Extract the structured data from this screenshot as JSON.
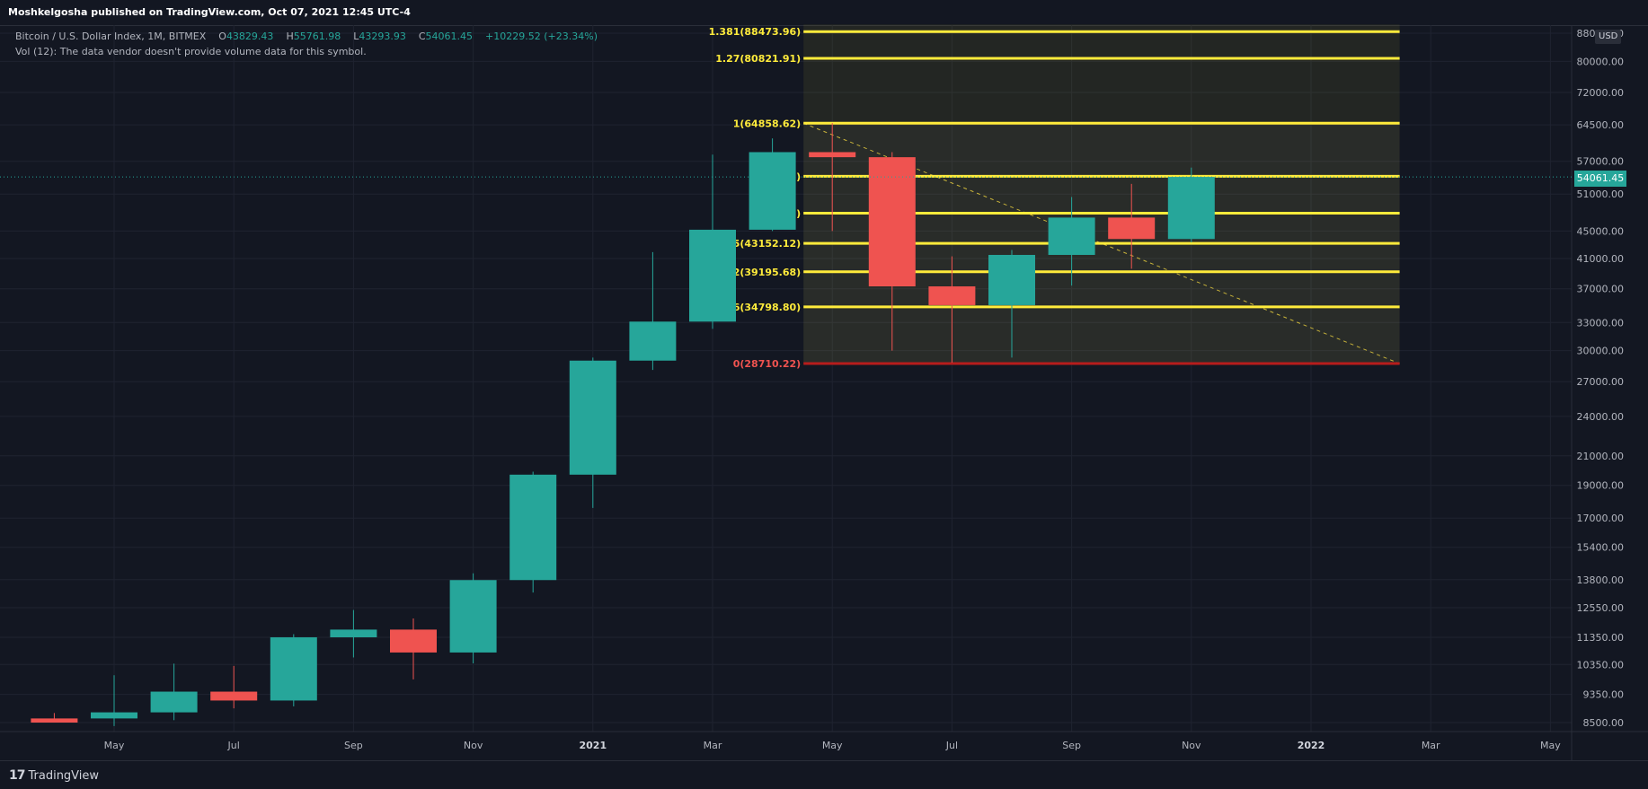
{
  "header": {
    "publish_line": "Moshkelgosha published on TradingView.com, Oct 07, 2021 12:45 UTC-4"
  },
  "legend": {
    "symbol": "Bitcoin / U.S. Dollar Index, 1M, BITMEX",
    "o_label": "O",
    "o_value": "43829.43",
    "h_label": "H",
    "h_value": "55761.98",
    "l_label": "L",
    "l_value": "43293.93",
    "c_label": "C",
    "c_value": "54061.45",
    "change": "+10229.52 (+23.34%)",
    "volume_note": "Vol (12): The data vendor doesn't provide volume data for this symbol."
  },
  "price_scale": {
    "currency": "USD",
    "last_price": "54061.45"
  },
  "footer": {
    "brand": "TradingView",
    "logo": "17"
  },
  "chart_data": {
    "type": "candlestick",
    "symbol": "Bitcoin / U.S. Dollar Index",
    "interval": "1M",
    "exchange": "BITMEX",
    "scale": "log",
    "y_ticks": [
      8500,
      9350,
      10350,
      11350,
      12550,
      13800,
      15400,
      17000,
      19000,
      21000,
      24000,
      27000,
      30000,
      33000,
      37000,
      41000,
      45000,
      51000,
      57000,
      64500,
      72000,
      80000,
      88000
    ],
    "y_tick_labels": [
      "8500.00",
      "9350.00",
      "10350.00",
      "11350.00",
      "12550.00",
      "13800.00",
      "15400.00",
      "17000.00",
      "19000.00",
      "21000.00",
      "24000.00",
      "27000.00",
      "30000.00",
      "33000.00",
      "37000.00",
      "41000.00",
      "45000.00",
      "51000.00",
      "57000.00",
      "64500.00",
      "72000.00",
      "80000.00",
      "88000.00"
    ],
    "x_labels": [
      "May",
      "Jul",
      "Sep",
      "Nov",
      "2021",
      "Mar",
      "May",
      "Jul",
      "Sep",
      "Nov",
      "2022",
      "Mar",
      "May"
    ],
    "x_label_month_index": [
      4,
      6,
      8,
      10,
      12,
      14,
      16,
      18,
      20,
      22,
      24,
      26,
      28
    ],
    "x_label_bold": [
      false,
      false,
      false,
      false,
      true,
      false,
      false,
      false,
      false,
      false,
      true,
      false,
      false
    ],
    "candles": [
      {
        "m": 3,
        "o": 8620,
        "h": 8780,
        "l": 8500,
        "c": 8500
      },
      {
        "m": 4,
        "o": 8620,
        "h": 9980,
        "l": 8400,
        "c": 8800
      },
      {
        "m": 5,
        "o": 8800,
        "h": 10380,
        "l": 8570,
        "c": 9440
      },
      {
        "m": 6,
        "o": 9440,
        "h": 10300,
        "l": 8920,
        "c": 9160
      },
      {
        "m": 7,
        "o": 9160,
        "h": 11470,
        "l": 8980,
        "c": 11350
      },
      {
        "m": 8,
        "o": 11350,
        "h": 12450,
        "l": 10600,
        "c": 11650
      },
      {
        "m": 9,
        "o": 11650,
        "h": 12100,
        "l": 9840,
        "c": 10780
      },
      {
        "m": 10,
        "o": 10780,
        "h": 14100,
        "l": 10390,
        "c": 13780
      },
      {
        "m": 11,
        "o": 13780,
        "h": 19900,
        "l": 13210,
        "c": 19700
      },
      {
        "m": 12,
        "o": 19700,
        "h": 29300,
        "l": 17600,
        "c": 29000
      },
      {
        "m": 13,
        "o": 29000,
        "h": 41900,
        "l": 28100,
        "c": 33100
      },
      {
        "m": 14,
        "o": 33100,
        "h": 58300,
        "l": 32300,
        "c": 45200
      },
      {
        "m": 15,
        "o": 45200,
        "h": 61600,
        "l": 45000,
        "c": 58800
      },
      {
        "m": 16,
        "o": 58800,
        "h": 64900,
        "l": 45000,
        "c": 57800
      },
      {
        "m": 17,
        "o": 57800,
        "h": 58800,
        "l": 30000,
        "c": 37300
      },
      {
        "m": 18,
        "o": 37300,
        "h": 41300,
        "l": 28800,
        "c": 35000
      },
      {
        "m": 19,
        "o": 35000,
        "h": 42200,
        "l": 29300,
        "c": 41500
      },
      {
        "m": 20,
        "o": 41500,
        "h": 50500,
        "l": 37400,
        "c": 47100
      },
      {
        "m": 21,
        "o": 47100,
        "h": 52800,
        "l": 39600,
        "c": 43800
      },
      {
        "m": 22,
        "o": 43800,
        "h": 55800,
        "l": 43300,
        "c": 54061.45
      }
    ],
    "fibonacci": {
      "levels": [
        {
          "ratio": "1.381",
          "price": 88473.96,
          "label": "1.381(88473.96)"
        },
        {
          "ratio": "1.27",
          "price": 80821.91,
          "label": "1.27(80821.91)"
        },
        {
          "ratio": "1",
          "price": 64858.62,
          "label": "1(64858.62)"
        },
        {
          "ratio": "0.786",
          "price": 54178.66,
          "label": "78.66)"
        },
        {
          "ratio": "0.618",
          "price": 47807.92,
          "label": "07.92)"
        },
        {
          "ratio": "0.5",
          "price": 43152.12,
          "label": "0.5(43152.12)"
        },
        {
          "ratio": "0.382",
          "price": 39195.68,
          "label": "0.382(39195.68)"
        },
        {
          "ratio": "0.236",
          "price": 34798.8,
          "label": "0.236(34798.80)"
        },
        {
          "ratio": "0",
          "price": 28710.22,
          "label": "0(28710.22)"
        }
      ],
      "start_month": 16,
      "end_month": 25,
      "line_color": "#ffeb3b",
      "base_color": "#b71c1c"
    },
    "colors": {
      "up": "#26a69a",
      "down": "#ef5350",
      "background": "#131722",
      "grid": "#1f2330"
    }
  }
}
